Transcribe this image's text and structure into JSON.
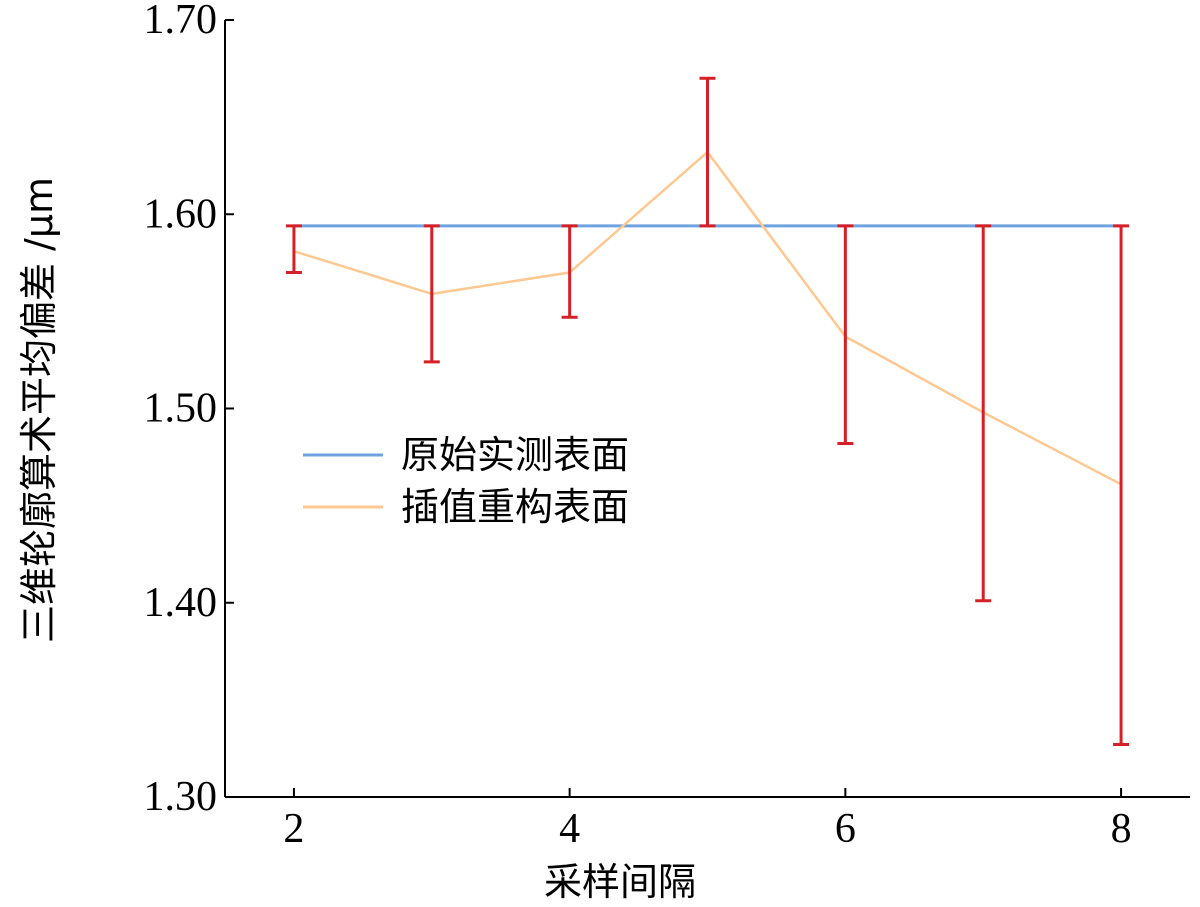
{
  "chart_data": {
    "type": "line",
    "xlabel": "采样间隔",
    "ylabel": "三维轮廓算术平均偏差 /μm",
    "x": [
      2,
      3,
      4,
      5,
      6,
      7,
      8
    ],
    "xlim": [
      1.5,
      8.5
    ],
    "ylim": [
      1.3,
      1.7
    ],
    "xticks": [
      2,
      4,
      6,
      8
    ],
    "xtick_labels": [
      "2",
      "4",
      "6",
      "8"
    ],
    "yticks": [
      1.3,
      1.4,
      1.5,
      1.6,
      1.7
    ],
    "ytick_labels": [
      "1.30",
      "1.40",
      "1.50",
      "1.60",
      "1.70"
    ],
    "grid": false,
    "legend_position": "center-left",
    "series": [
      {
        "name": "原始实测表面",
        "color": "#6fa3e0",
        "values": [
          1.594,
          1.594,
          1.594,
          1.594,
          1.594,
          1.594,
          1.594
        ]
      },
      {
        "name": "插值重构表面",
        "color": "#ffc890",
        "values": [
          1.581,
          1.559,
          1.57,
          1.632,
          1.537,
          1.498,
          1.461
        ]
      }
    ],
    "error_bars": {
      "color": "#d42026",
      "x": [
        2,
        3,
        4,
        5,
        6,
        7,
        8
      ],
      "lower": [
        1.57,
        1.524,
        1.547,
        1.594,
        1.482,
        1.401,
        1.327
      ],
      "upper": [
        1.594,
        1.594,
        1.594,
        1.67,
        1.594,
        1.594,
        1.594
      ]
    }
  }
}
